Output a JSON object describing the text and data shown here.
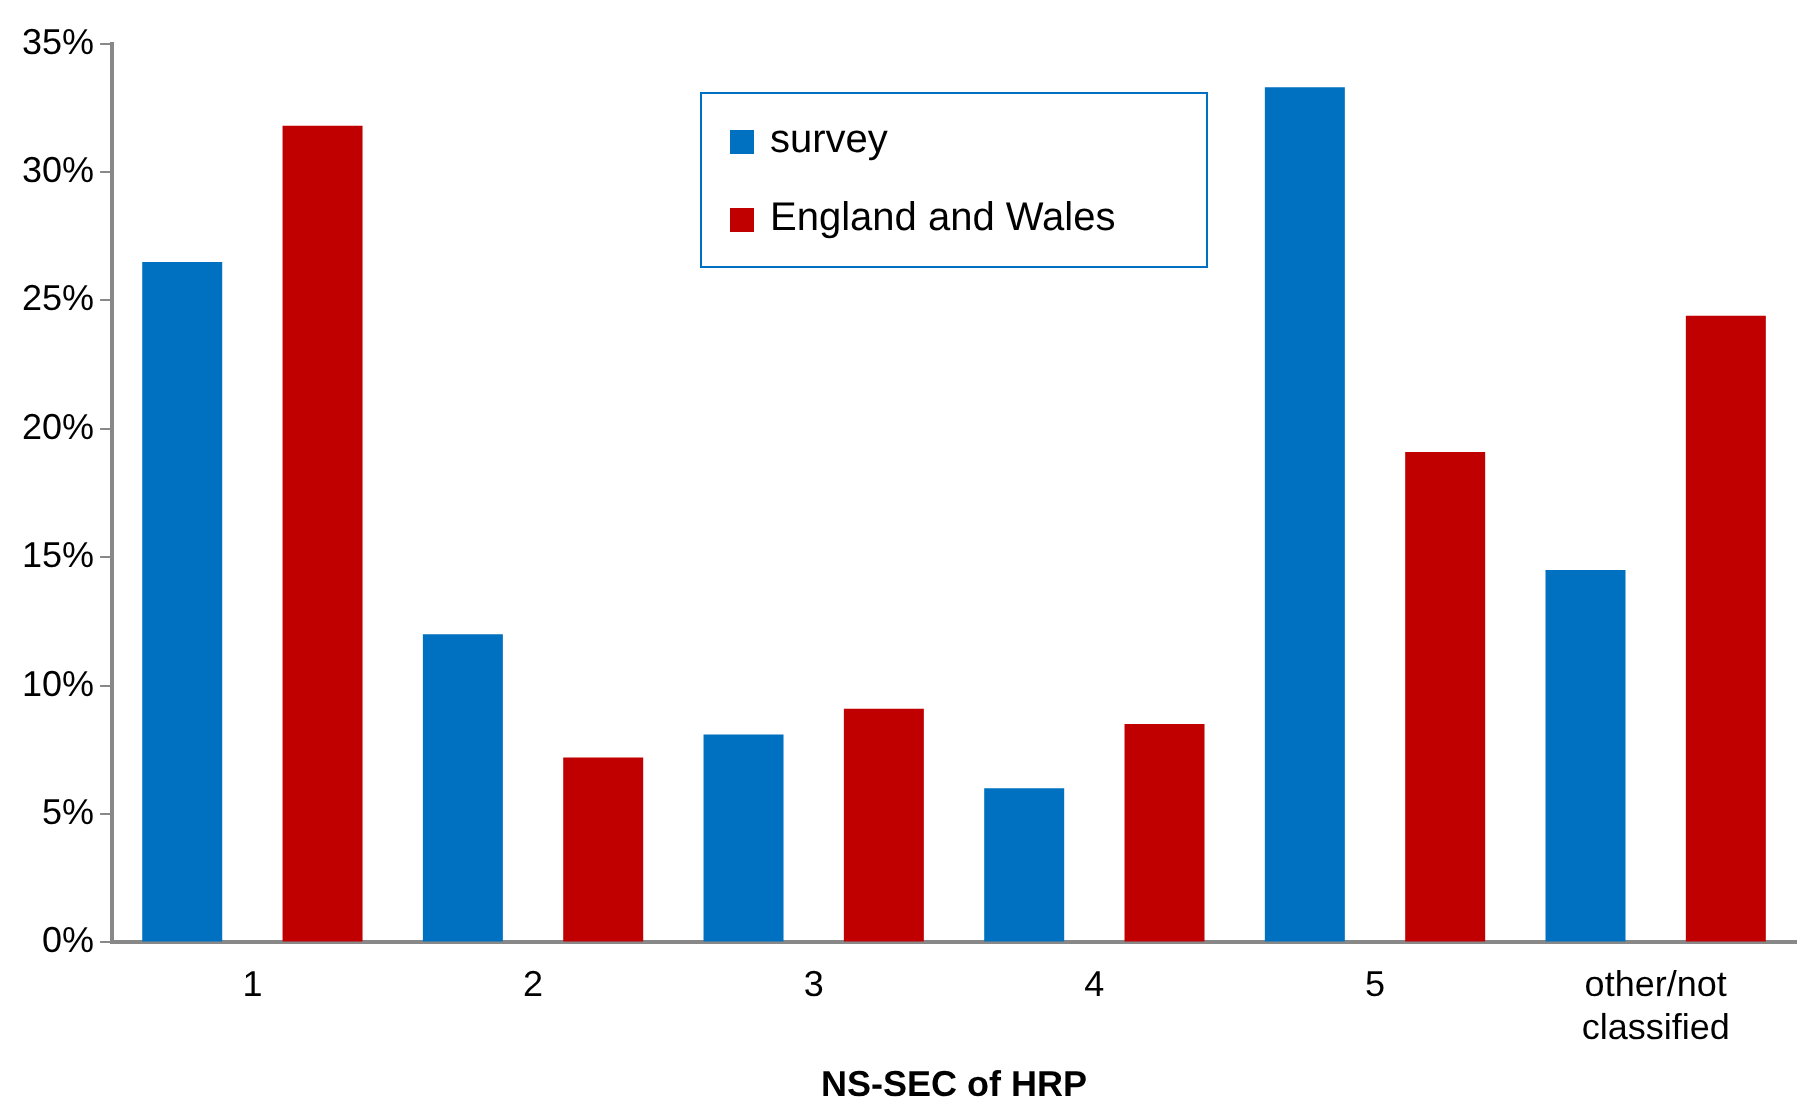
{
  "chart_data": {
    "type": "bar",
    "xlabel": "NS-SEC of HRP",
    "categories": [
      "1",
      "2",
      "3",
      "4",
      "5",
      "other/not classified"
    ],
    "series": [
      {
        "name": "survey",
        "color": "#0070c0",
        "values": [
          26.5,
          12.0,
          8.1,
          6.0,
          33.3,
          14.5
        ]
      },
      {
        "name": "England and Wales",
        "color": "#c00000",
        "values": [
          31.8,
          7.2,
          9.1,
          8.5,
          19.1,
          24.4
        ]
      }
    ],
    "ylim": [
      0,
      35
    ],
    "yticks": [
      {
        "value": 0,
        "label": "0%"
      },
      {
        "value": 5,
        "label": "5%"
      },
      {
        "value": 10,
        "label": "10%"
      },
      {
        "value": 15,
        "label": "15%"
      },
      {
        "value": 20,
        "label": "20%"
      },
      {
        "value": 25,
        "label": "25%"
      },
      {
        "value": 30,
        "label": "30%"
      },
      {
        "value": 35,
        "label": "35%"
      }
    ],
    "grid": false,
    "legend": "top"
  }
}
